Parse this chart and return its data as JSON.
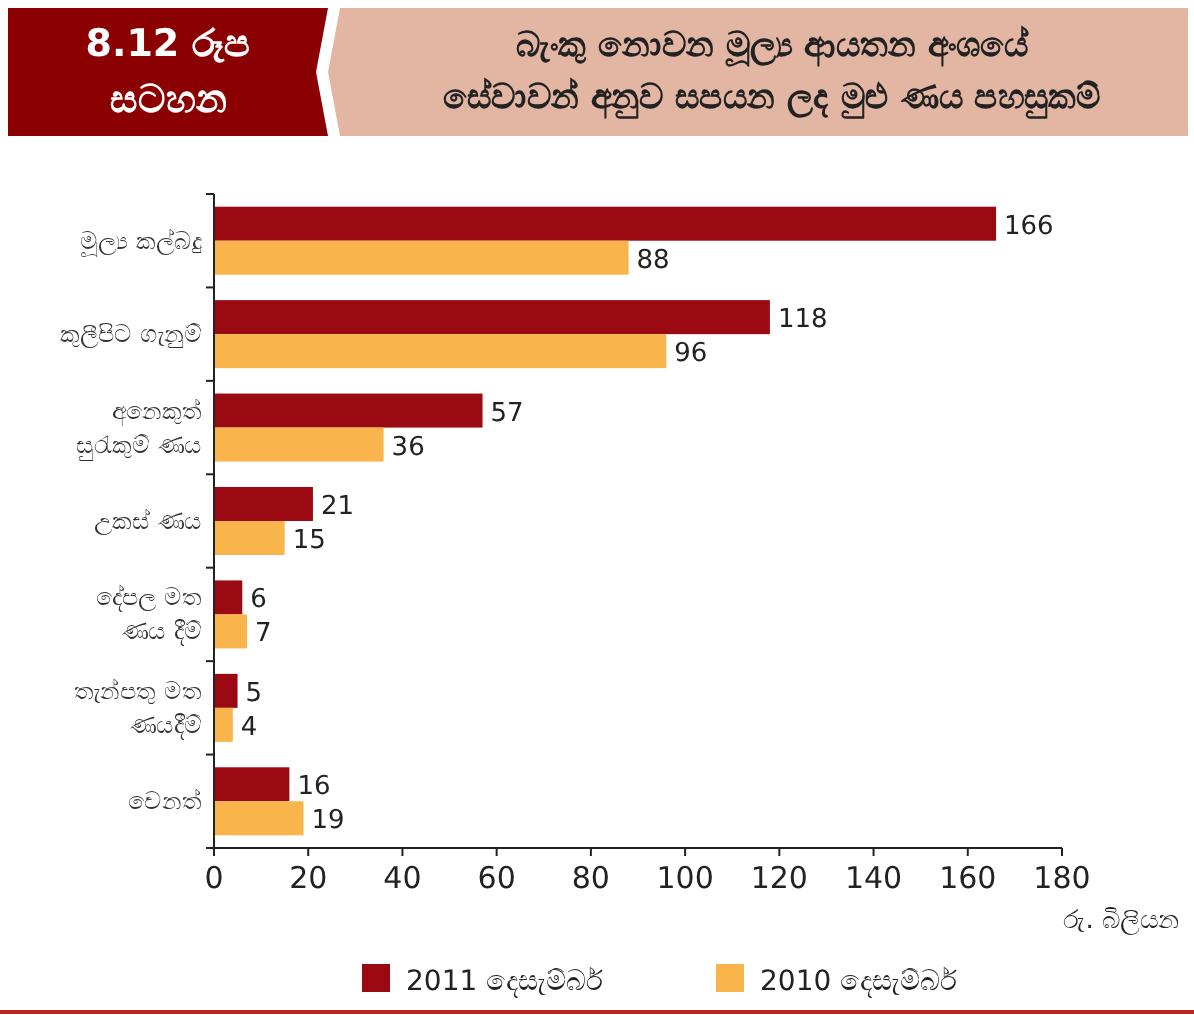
{
  "chart_data": {
    "type": "bar",
    "orientation": "horizontal",
    "title": "බැංකු නොවන මූල්‍ය ආයතන අංශයේ\nසේවාවන් අනුව සපයන ලද මුළු ණය පහසුකම්",
    "annotations": [
      "8.12 රූප\nසටහන"
    ],
    "categories": [
      "මූල්‍ය කල්බදු",
      "කුලීපිට ගැනුම්",
      "අනෙකුත්\nසුරැකුම් ණය",
      "උකස් ණය",
      "දේපල මත\nණය  දීම්",
      "තැන්පතු මත\nණයදීම්",
      "වෙනත්"
    ],
    "series": [
      {
        "name": "2011 දෙසැම්බර්",
        "color": "#9b0a12",
        "values": [
          166,
          118,
          57,
          21,
          6,
          5,
          16
        ]
      },
      {
        "name": "2010 දෙසැම්බර්",
        "color": "#f9b54c",
        "values": [
          88,
          96,
          36,
          15,
          7,
          4,
          19
        ]
      }
    ],
    "xlabel": "රු. බිලියන",
    "xlim": [
      0,
      180
    ],
    "xticks": [
      0,
      20,
      40,
      60,
      80,
      100,
      120,
      140,
      160,
      180
    ],
    "data_labels": true,
    "legend": "bottom",
    "grid": false
  }
}
